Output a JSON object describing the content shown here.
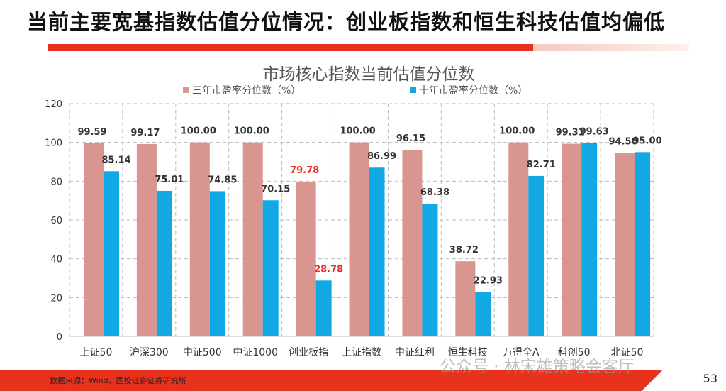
{
  "slide": {
    "title": "当前主要宽基指数估值分位情况：创业板指数和恒生科技估值均偏低",
    "source": "数据来源：Wind，国投证券证券研究所",
    "page": "53",
    "watermark": "公众号 · 林宋雄策略会客厅"
  },
  "chart_data": {
    "type": "bar",
    "title": "市场核心指数当前估值分位数",
    "categories": [
      "上证50",
      "沪深300",
      "中证500",
      "中证1000",
      "创业板指",
      "上证指数",
      "中证红利",
      "恒生科技",
      "万得全A",
      "科创50",
      "北证50"
    ],
    "series": [
      {
        "name": "三年市盈率分位数（%）",
        "color": "#d9958f",
        "values": [
          99.59,
          99.17,
          100.0,
          100.0,
          79.78,
          100.0,
          96.15,
          38.72,
          100.0,
          99.31,
          94.5
        ]
      },
      {
        "name": "十年市盈率分位数（%）",
        "color": "#12a8e4",
        "values": [
          85.14,
          75.01,
          74.85,
          70.15,
          28.78,
          86.99,
          68.38,
          22.93,
          82.71,
          99.63,
          95.0
        ]
      }
    ],
    "highlight_category": "创业板指",
    "highlight_color": "#e8321e",
    "ylim": [
      0,
      120
    ],
    "yticks": [
      0,
      20,
      40,
      60,
      80,
      100,
      120
    ],
    "grid": true,
    "legend": "top"
  }
}
